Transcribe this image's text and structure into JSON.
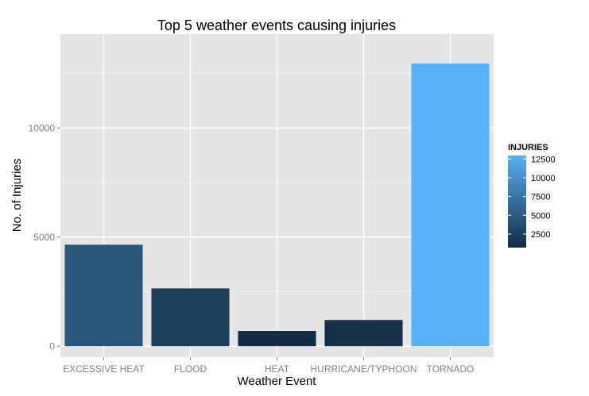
{
  "chart_data": {
    "type": "bar",
    "title": "Top 5 weather events causing injuries",
    "xlabel": "Weather Event",
    "ylabel": "No. of Injuries",
    "categories": [
      "EXCESSIVE HEAT",
      "FLOOD",
      "HEAT",
      "HURRICANE/TYPHOON",
      "TORNADO"
    ],
    "values": [
      4650,
      2650,
      700,
      1200,
      12950
    ],
    "ylim": [
      -500,
      14300
    ],
    "yticks": [
      0,
      5000,
      10000
    ],
    "grid": true,
    "legend": {
      "title": "INJURIES",
      "placement": "right",
      "ticks": [
        2500,
        5000,
        7500,
        10000,
        12500
      ],
      "color_low": "#132b43",
      "color_high": "#56b1f7"
    },
    "colors": {
      "panel_background": "#e5e5e5",
      "grid_major": "#ffffff",
      "grid_minor": "#f2f2f2"
    }
  }
}
